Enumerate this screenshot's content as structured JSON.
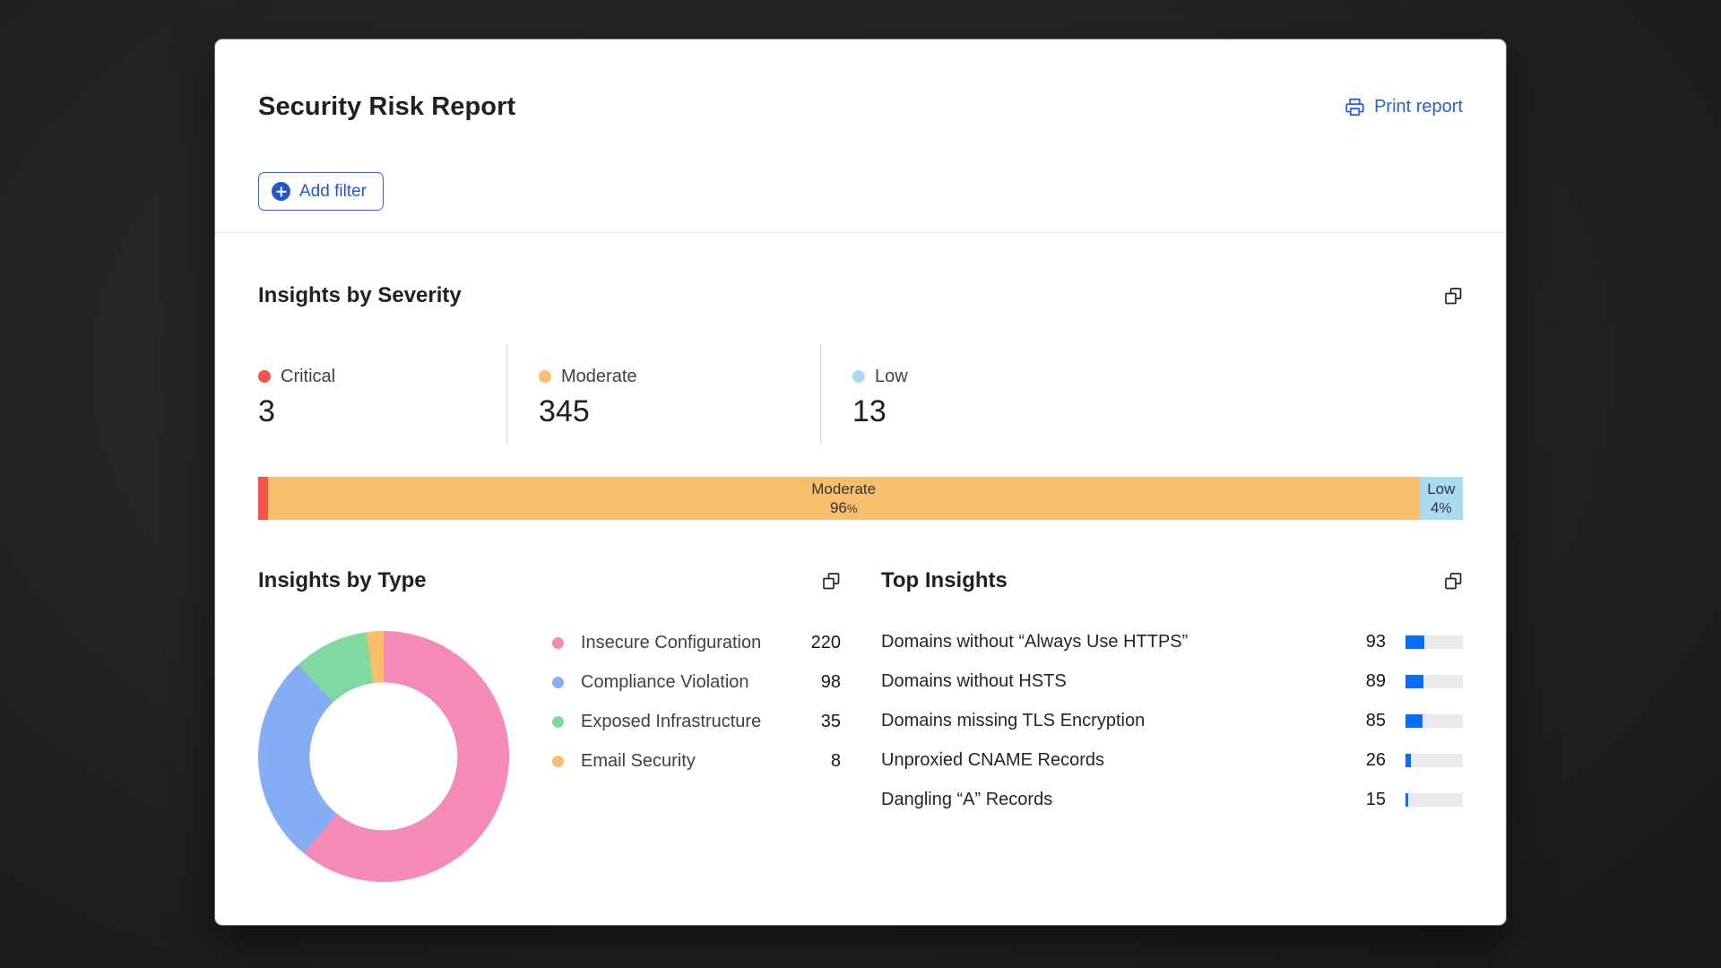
{
  "page": {
    "background": "#242424",
    "accent_blue": "#2562d6"
  },
  "header": {
    "title": "Security Risk Report",
    "print_label": "Print report"
  },
  "filters": {
    "add_filter_label": "Add filter"
  },
  "insights_by_severity": {
    "title": "Insights by Severity",
    "stats": [
      {
        "label": "Critical",
        "value": "3",
        "color": "#f4544c"
      },
      {
        "label": "Moderate",
        "value": "345",
        "color": "#f5be73"
      },
      {
        "label": "Low",
        "value": "13",
        "color": "#a9dcf1"
      }
    ],
    "bar_segments": [
      {
        "name": "",
        "pct": "",
        "sign": "",
        "color": "#f4544c",
        "width_pct": 0.8
      },
      {
        "name": "Moderate",
        "pct": "96",
        "sign": "%",
        "color": "#f7be6c",
        "width_pct": 95.6
      },
      {
        "name": "Low",
        "pct": "4",
        "sign": "%",
        "color": "#a9dcf1",
        "width_pct": 3.6
      }
    ]
  },
  "insights_by_type": {
    "title": "Insights by Type",
    "items": [
      {
        "label": "Insecure Configuration",
        "value": 220,
        "color": "#f68ab6"
      },
      {
        "label": "Compliance Violation",
        "value": 98,
        "color": "#84adf4"
      },
      {
        "label": "Exposed Infrastructure",
        "value": 35,
        "color": "#7fd9a0"
      },
      {
        "label": "Email Security",
        "value": 8,
        "color": "#f8be69"
      }
    ]
  },
  "top_insights": {
    "title": "Top Insights",
    "bar_color": "#0b6df5",
    "track_color": "#eaeaec",
    "rows": [
      {
        "label": "Domains without “Always Use HTTPS”",
        "value": 93,
        "bar_pct": 33
      },
      {
        "label": "Domains without HSTS",
        "value": 89,
        "bar_pct": 31
      },
      {
        "label": "Domains missing TLS Encryption",
        "value": 85,
        "bar_pct": 30
      },
      {
        "label": "Unproxied CNAME Records",
        "value": 26,
        "bar_pct": 9
      },
      {
        "label": "Dangling “A” Records",
        "value": 15,
        "bar_pct": 5
      }
    ]
  },
  "chart_data": [
    {
      "type": "bar",
      "title": "Insights by Severity",
      "categories": [
        "Critical",
        "Moderate",
        "Low"
      ],
      "values": [
        3,
        345,
        13
      ],
      "segment_percent_labels": [
        "",
        "96%",
        "4%"
      ],
      "colors": [
        "#f4544c",
        "#f7be6c",
        "#a9dcf1"
      ],
      "layout": "horizontal-stacked-100pct"
    },
    {
      "type": "pie",
      "title": "Insights by Type",
      "categories": [
        "Insecure Configuration",
        "Compliance Violation",
        "Exposed Infrastructure",
        "Email Security"
      ],
      "values": [
        220,
        98,
        35,
        8
      ],
      "colors": [
        "#f68ab6",
        "#84adf4",
        "#7fd9a0",
        "#f8be69"
      ],
      "style": "donut",
      "start_angle_deg": 0,
      "direction": "clockwise",
      "legend_position": "right"
    },
    {
      "type": "bar",
      "title": "Top Insights",
      "categories": [
        "Domains without “Always Use HTTPS”",
        "Domains without HSTS",
        "Domains missing TLS Encryption",
        "Unproxied CNAME Records",
        "Dangling “A” Records"
      ],
      "values": [
        93,
        89,
        85,
        26,
        15
      ],
      "layout": "horizontal-mini-bars",
      "bar_color": "#0b6df5"
    }
  ]
}
